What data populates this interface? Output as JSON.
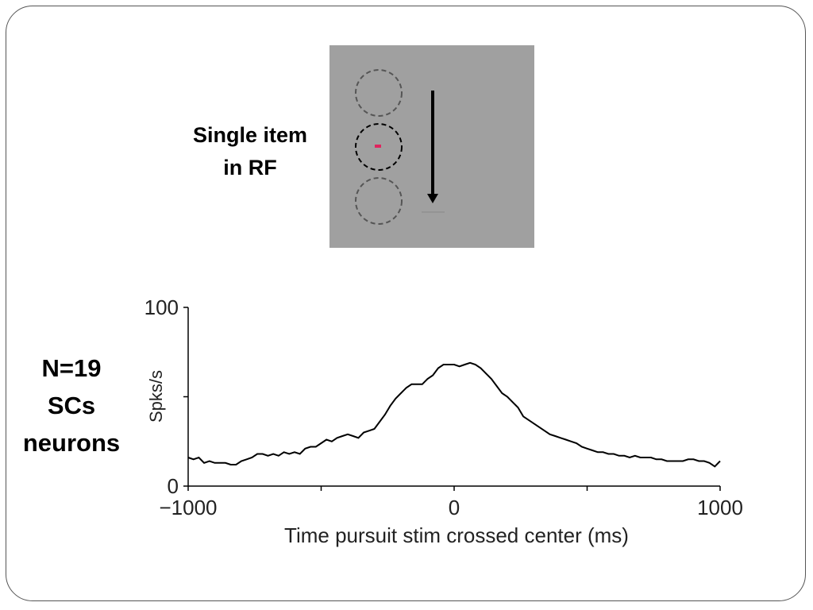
{
  "slide": {
    "stimulus_label": [
      "Single item",
      "in RF"
    ],
    "sample_label": [
      "N=19",
      "SCs",
      "neurons"
    ]
  },
  "stimulus_panel": {
    "background_color": "#a0a0a0",
    "target_color": "#e0245e",
    "arrow_color": "#000000"
  },
  "chart_data": {
    "type": "line",
    "xlabel": "Time pursuit stim crossed center (ms)",
    "ylabel": "Spks/s",
    "xlim": [
      -1000,
      1000
    ],
    "ylim": [
      0,
      100
    ],
    "xticks": [
      -1000,
      -500,
      0,
      500,
      1000
    ],
    "xtick_labels": [
      "−1000",
      "",
      "0",
      "",
      "1000"
    ],
    "yticks": [
      0,
      50,
      100
    ],
    "ytick_labels": [
      "0",
      "",
      "100"
    ],
    "grid": false,
    "line_color": "#000000",
    "series": [
      {
        "x": [
          -1000,
          -980,
          -960,
          -940,
          -920,
          -900,
          -880,
          -860,
          -840,
          -820,
          -800,
          -780,
          -760,
          -740,
          -720,
          -700,
          -680,
          -660,
          -640,
          -620,
          -600,
          -580,
          -560,
          -540,
          -520,
          -500,
          -480,
          -460,
          -440,
          -420,
          -400,
          -380,
          -360,
          -340,
          -320,
          -300,
          -280,
          -260,
          -240,
          -220,
          -200,
          -180,
          -160,
          -140,
          -120,
          -100,
          -80,
          -60,
          -40,
          -20,
          0,
          20,
          40,
          60,
          80,
          100,
          120,
          140,
          160,
          180,
          200,
          220,
          240,
          260,
          280,
          300,
          320,
          340,
          360,
          380,
          400,
          420,
          440,
          460,
          480,
          500,
          520,
          540,
          560,
          580,
          600,
          620,
          640,
          660,
          680,
          700,
          720,
          740,
          760,
          780,
          800,
          820,
          840,
          860,
          880,
          900,
          920,
          940,
          960,
          980,
          1000
        ],
        "values": [
          16,
          15,
          16,
          13,
          14,
          13,
          13,
          13,
          12,
          12,
          14,
          15,
          16,
          18,
          18,
          17,
          18,
          17,
          19,
          18,
          19,
          18,
          21,
          22,
          22,
          24,
          26,
          25,
          27,
          28,
          29,
          28,
          27,
          30,
          31,
          32,
          36,
          40,
          45,
          49,
          52,
          55,
          57,
          57,
          57,
          60,
          62,
          66,
          68,
          68,
          68,
          67,
          68,
          69,
          68,
          66,
          63,
          60,
          56,
          52,
          50,
          47,
          44,
          39,
          37,
          35,
          33,
          31,
          29,
          28,
          27,
          26,
          25,
          24,
          22,
          21,
          20,
          19,
          19,
          18,
          18,
          17,
          17,
          16,
          17,
          16,
          16,
          16,
          15,
          15,
          14,
          14,
          14,
          14,
          15,
          15,
          14,
          14,
          13,
          11,
          14
        ]
      }
    ]
  }
}
